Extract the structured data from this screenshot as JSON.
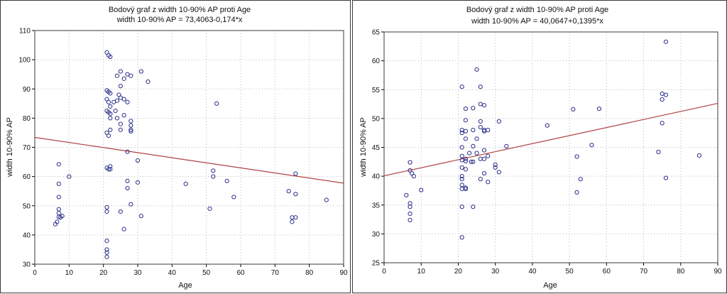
{
  "colors": {
    "point": "#2b2f8a",
    "fit_line": "#b04040",
    "frame": "#3a3a3a",
    "grid": "#b8b8b8"
  },
  "chart_data": [
    {
      "type": "scatter",
      "title": "Bodový graf z width 10-90% AP proti Age",
      "subtitle": "width 10-90% AP = 73,4063-0,174*x",
      "xlabel": "Age",
      "ylabel": "width 10-90% AP",
      "xlim": [
        0,
        90
      ],
      "ylim": [
        30,
        110
      ],
      "xticks": [
        "0",
        "10",
        "20",
        "30",
        "40",
        "50",
        "60",
        "70",
        "80",
        "90"
      ],
      "yticks": [
        "30",
        "40",
        "50",
        "60",
        "70",
        "80",
        "90",
        "100",
        "110"
      ],
      "grid": true,
      "fit": {
        "intercept": 73.4063,
        "slope": -0.174
      },
      "points": [
        [
          6,
          43.7
        ],
        [
          6.5,
          44.5
        ],
        [
          7,
          64.2
        ],
        [
          7,
          57.5
        ],
        [
          7,
          53
        ],
        [
          7,
          48.8
        ],
        [
          7,
          47.5
        ],
        [
          7,
          46.2
        ],
        [
          7.5,
          46
        ],
        [
          8,
          46.5
        ],
        [
          10,
          60
        ],
        [
          21,
          102.5
        ],
        [
          21.5,
          101.5
        ],
        [
          22,
          101
        ],
        [
          21,
          89.5
        ],
        [
          21.5,
          89
        ],
        [
          22,
          88.5
        ],
        [
          21,
          86.5
        ],
        [
          21.5,
          85.5
        ],
        [
          22,
          84
        ],
        [
          21,
          82.5
        ],
        [
          21.5,
          82
        ],
        [
          22,
          81.5
        ],
        [
          22,
          80
        ],
        [
          21,
          75
        ],
        [
          21.5,
          74
        ],
        [
          22,
          76
        ],
        [
          21,
          63
        ],
        [
          21.5,
          62.5
        ],
        [
          22,
          63.5
        ],
        [
          22,
          62.5
        ],
        [
          21,
          49.5
        ],
        [
          21,
          48
        ],
        [
          21,
          38
        ],
        [
          21,
          35
        ],
        [
          21,
          34
        ],
        [
          21,
          32.5
        ],
        [
          23,
          85.5
        ],
        [
          23.5,
          82.5
        ],
        [
          24,
          86
        ],
        [
          24,
          80
        ],
        [
          24,
          94.5
        ],
        [
          24.5,
          88
        ],
        [
          25,
          96
        ],
        [
          25,
          91
        ],
        [
          25,
          87
        ],
        [
          25,
          78
        ],
        [
          25,
          76
        ],
        [
          25,
          48
        ],
        [
          26,
          93.5
        ],
        [
          26,
          86.5
        ],
        [
          26,
          81
        ],
        [
          26,
          42
        ],
        [
          27,
          95
        ],
        [
          27,
          85.5
        ],
        [
          27,
          68.5
        ],
        [
          27,
          58.5
        ],
        [
          27,
          56
        ],
        [
          28,
          94.5
        ],
        [
          28,
          79
        ],
        [
          28,
          77.5
        ],
        [
          28,
          76
        ],
        [
          28,
          75.5
        ],
        [
          28,
          50.5
        ],
        [
          30,
          65.5
        ],
        [
          30,
          58
        ],
        [
          31,
          96
        ],
        [
          31,
          46.5
        ],
        [
          33,
          92.5
        ],
        [
          44,
          57.5
        ],
        [
          51,
          49
        ],
        [
          52,
          62
        ],
        [
          52,
          60
        ],
        [
          53,
          85
        ],
        [
          56,
          58.5
        ],
        [
          58,
          53
        ],
        [
          74,
          55
        ],
        [
          75,
          46
        ],
        [
          75,
          44.5
        ],
        [
          76,
          61
        ],
        [
          76,
          54
        ],
        [
          76,
          46
        ],
        [
          85,
          52
        ]
      ]
    },
    {
      "type": "scatter",
      "title": "Bodový graf z width 10-90% AP proti Age",
      "subtitle": "width 10-90% AP = 40,0647+0,1395*x",
      "xlabel": "Age",
      "ylabel": "width 10-90% AP",
      "xlim": [
        0,
        90
      ],
      "ylim": [
        25,
        65
      ],
      "xticks": [
        "0",
        "10",
        "20",
        "30",
        "40",
        "50",
        "60",
        "70",
        "80",
        "90"
      ],
      "yticks": [
        "25",
        "30",
        "35",
        "40",
        "45",
        "50",
        "55",
        "60",
        "65"
      ],
      "grid": true,
      "fit": {
        "intercept": 40.0647,
        "slope": 0.1395
      },
      "points": [
        [
          6,
          36.7
        ],
        [
          7,
          42.4
        ],
        [
          7,
          41
        ],
        [
          7,
          35.3
        ],
        [
          7,
          34.7
        ],
        [
          7,
          33.5
        ],
        [
          7,
          32.4
        ],
        [
          7.5,
          40.5
        ],
        [
          8,
          40
        ],
        [
          10,
          37.6
        ],
        [
          21,
          55.5
        ],
        [
          21,
          48
        ],
        [
          21,
          47.5
        ],
        [
          21,
          45
        ],
        [
          21,
          43.5
        ],
        [
          21,
          42.8
        ],
        [
          21,
          41.5
        ],
        [
          21,
          40
        ],
        [
          21,
          39.5
        ],
        [
          21,
          38.5
        ],
        [
          21,
          37.8
        ],
        [
          21,
          34.7
        ],
        [
          21,
          29.4
        ],
        [
          22,
          51.7
        ],
        [
          22,
          49.7
        ],
        [
          22,
          47.8
        ],
        [
          22,
          46.5
        ],
        [
          22,
          43
        ],
        [
          22,
          42.6
        ],
        [
          22,
          41.2
        ],
        [
          22,
          38
        ],
        [
          22,
          37.8
        ],
        [
          23,
          44
        ],
        [
          23.5,
          42.5
        ],
        [
          24,
          51.8
        ],
        [
          24,
          48
        ],
        [
          24,
          45.2
        ],
        [
          24,
          42.5
        ],
        [
          24,
          34.7
        ],
        [
          25,
          58.5
        ],
        [
          25,
          46.5
        ],
        [
          25,
          44
        ],
        [
          26,
          55.5
        ],
        [
          26,
          52.5
        ],
        [
          26,
          49.5
        ],
        [
          26,
          48.5
        ],
        [
          26,
          43
        ],
        [
          26,
          39.5
        ],
        [
          27,
          52.3
        ],
        [
          27,
          48
        ],
        [
          27,
          47.8
        ],
        [
          27,
          44.5
        ],
        [
          27,
          43
        ],
        [
          27,
          40.5
        ],
        [
          28,
          48
        ],
        [
          28,
          43.5
        ],
        [
          28,
          39
        ],
        [
          30,
          42
        ],
        [
          30,
          41.5
        ],
        [
          31,
          49.5
        ],
        [
          31,
          40.7
        ],
        [
          33,
          45.2
        ],
        [
          44,
          48.8
        ],
        [
          51,
          51.6
        ],
        [
          52,
          43.4
        ],
        [
          52,
          37.2
        ],
        [
          53,
          39.5
        ],
        [
          56,
          45.4
        ],
        [
          58,
          51.7
        ],
        [
          74,
          44.2
        ],
        [
          75,
          54.3
        ],
        [
          75,
          53.3
        ],
        [
          75,
          49.2
        ],
        [
          76,
          63.3
        ],
        [
          76,
          54.1
        ],
        [
          76,
          39.7
        ],
        [
          85,
          43.6
        ]
      ]
    }
  ]
}
